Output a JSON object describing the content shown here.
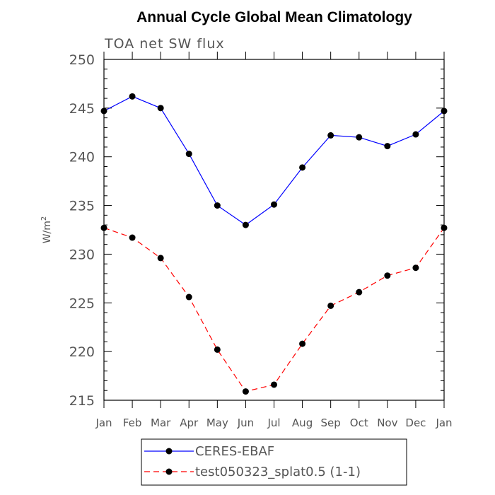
{
  "chart_data": {
    "type": "line",
    "title": "Annual Cycle Global Mean Climatology",
    "subtitle": "TOA net SW flux",
    "ylabel": "W/m",
    "ylabel_superscript": "2",
    "xlabel": "",
    "categories": [
      "Jan",
      "Feb",
      "Mar",
      "Apr",
      "May",
      "Jun",
      "Jul",
      "Aug",
      "Sep",
      "Oct",
      "Nov",
      "Dec",
      "Jan"
    ],
    "ylim": [
      215,
      250
    ],
    "yticks": [
      215,
      220,
      225,
      230,
      235,
      240,
      245,
      250
    ],
    "grid": false,
    "legend_placement": "bottom",
    "series": [
      {
        "name": "CERES-EBAF",
        "color": "#0000ff",
        "dash": "solid",
        "marker": "circle",
        "values": [
          244.7,
          246.2,
          245.0,
          240.3,
          235.0,
          233.0,
          235.1,
          238.9,
          242.2,
          242.0,
          241.1,
          242.3,
          244.7
        ]
      },
      {
        "name": "test050323_splat0.5 (1-1)",
        "color": "#ff0000",
        "dash": "dashed",
        "marker": "circle",
        "values": [
          232.7,
          231.7,
          229.6,
          225.6,
          220.2,
          215.9,
          216.6,
          220.8,
          224.7,
          226.1,
          227.8,
          228.6,
          232.7
        ]
      }
    ]
  }
}
